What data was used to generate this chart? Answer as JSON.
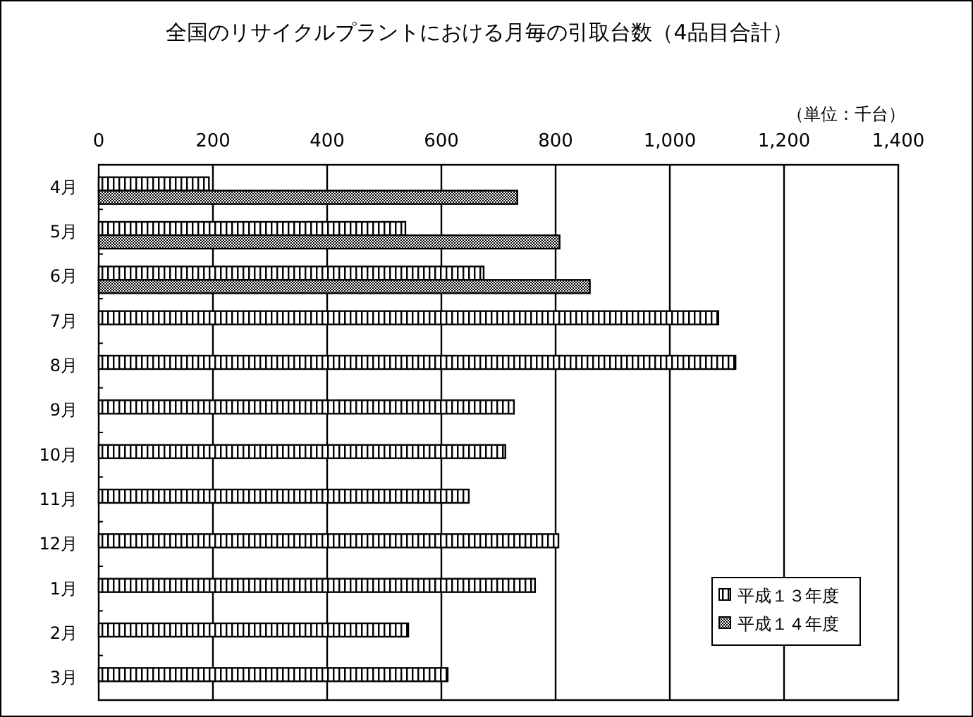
{
  "chart_data": {
    "type": "bar",
    "orientation": "horizontal",
    "title": "全国のリサイクルプラントにおける月毎の引取台数（4品目合計）",
    "annotations": [
      "（単位：千台）"
    ],
    "categories": [
      "4月",
      "5月",
      "6月",
      "7月",
      "8月",
      "9月",
      "10月",
      "11月",
      "12月",
      "1月",
      "2月",
      "3月"
    ],
    "series": [
      {
        "name": "平成１３年度",
        "color": "#000000",
        "values": [
          193,
          537,
          674,
          1085,
          1115,
          727,
          712,
          648,
          805,
          764,
          542,
          611
        ]
      },
      {
        "name": "平成１４年度",
        "color": "#000000",
        "values": [
          733,
          807,
          860,
          null,
          null,
          null,
          null,
          null,
          null,
          null,
          null,
          null
        ]
      }
    ],
    "xlim": [
      0,
      1400
    ],
    "xticks": [
      0,
      200,
      400,
      600,
      800,
      {
        "value": 1000,
        "label": "1,000"
      },
      {
        "value": 1200,
        "label": "1,200"
      },
      {
        "value": 1400,
        "label": "1,400"
      }
    ],
    "grid": "x",
    "legend": "bottom right"
  }
}
